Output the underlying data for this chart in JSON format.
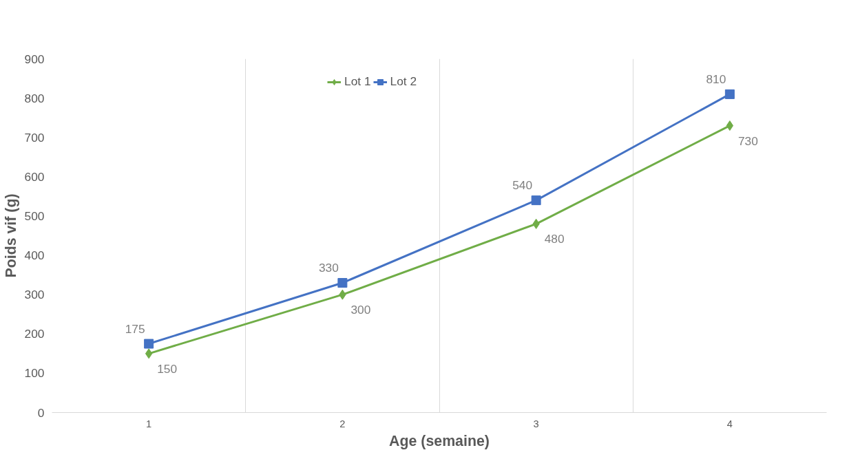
{
  "chart_data": {
    "type": "line",
    "xlabel": "Age (semaine)",
    "ylabel": "Poids vif (g)",
    "categories": [
      "1",
      "2",
      "3",
      "4"
    ],
    "series": [
      {
        "name": "Lot 1",
        "color": "#70ad47",
        "marker": "diamond",
        "values": [
          150,
          300,
          480,
          730
        ]
      },
      {
        "name": "Lot 2",
        "color": "#4472c4",
        "marker": "square",
        "values": [
          175,
          330,
          540,
          810
        ]
      }
    ],
    "ylim": [
      0,
      900
    ],
    "yticks": [
      0,
      100,
      200,
      300,
      400,
      500,
      600,
      700,
      800,
      900
    ],
    "grid": "x",
    "legend": "top",
    "data_labels": true,
    "line_style": "solid"
  }
}
